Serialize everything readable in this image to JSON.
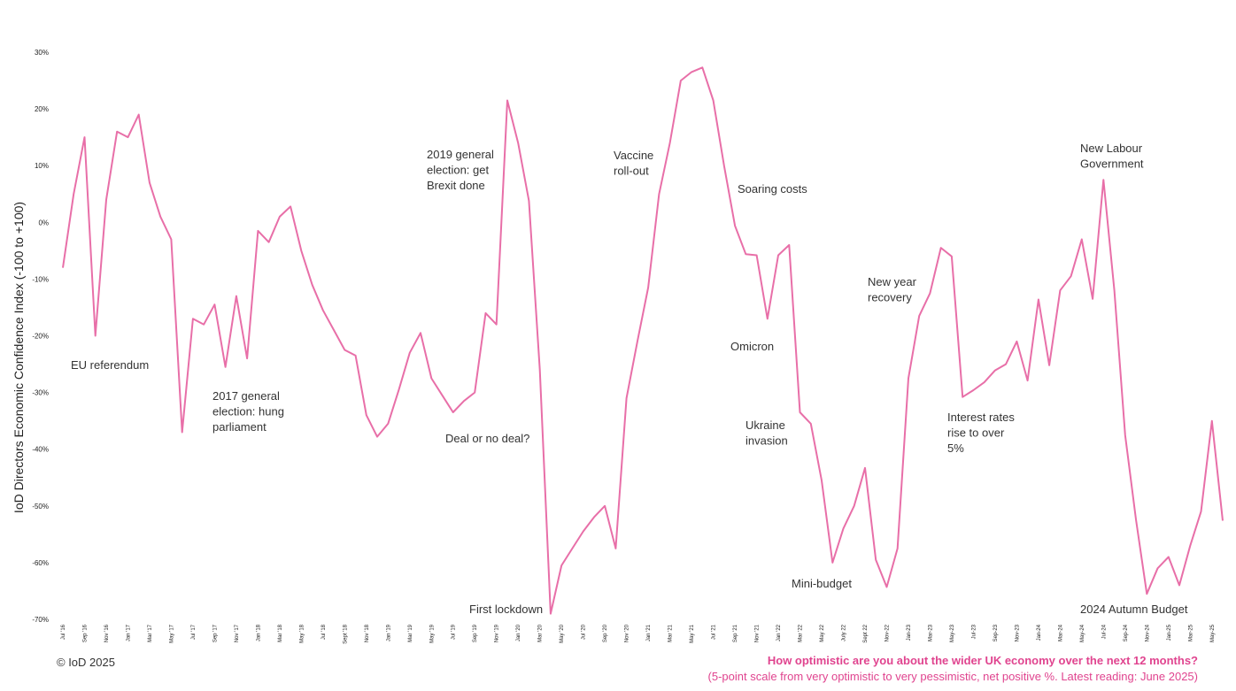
{
  "chart_data": {
    "type": "line",
    "ylabel": "IoD Directors Economic Confidence Index (-100 to +100)",
    "ylim": [
      -70,
      30
    ],
    "yticks": [
      "30%",
      "20%",
      "10%",
      "0%",
      "-10%",
      "-20%",
      "-30%",
      "-40%",
      "-50%",
      "-60%",
      "-70%"
    ],
    "ytick_values": [
      30,
      20,
      10,
      0,
      -10,
      -20,
      -30,
      -40,
      -50,
      -60,
      -70
    ],
    "xtick_labels": [
      "Jul '16",
      "Sep '16",
      "Nov '16",
      "Jan '17",
      "Mar '17",
      "May '17",
      "Jul '17",
      "Sep '17",
      "Nov '17",
      "Jan '18",
      "Mar '18",
      "May '18",
      "Jul '18",
      "Sept '18",
      "Nov '18",
      "Jan '19",
      "Mar '19",
      "May '19",
      "Jul '19",
      "Sep '19",
      "Nov '19",
      "Jan '20",
      "Mar '20",
      "May '20",
      "Jul '20",
      "Sep '20",
      "Nov '20",
      "Jan '21",
      "Mar '21",
      "May '21",
      "Jul '21",
      "Sep '21",
      "Nov '21",
      "Jan '22",
      "Mar '22",
      "May 22",
      "July 22",
      "Sept 22",
      "Nov-22",
      "Jan-23",
      "Mar-23",
      "May-23",
      "Jul-23",
      "Sep-23",
      "Nov-23",
      "Jan-24",
      "Mar-24",
      "May-24",
      "Jul-24",
      "Sep-24",
      "Nov-24",
      "Jan-25",
      "Mar-25",
      "May-25"
    ],
    "grid": false,
    "series": [
      {
        "color": "#e86fa8",
        "values": [
          -8,
          5,
          15,
          -20,
          4,
          16,
          15,
          19,
          7,
          1,
          -3,
          -37,
          -17,
          -18,
          -14.5,
          -25.5,
          -13,
          -24,
          -1.5,
          -3.5,
          1,
          2.8,
          -5,
          -11,
          -15.5,
          -19,
          -22.5,
          -23.5,
          -34,
          -37.8,
          -35.5,
          -29.5,
          -23,
          -19.5,
          -27.5,
          -30.5,
          -33.5,
          -31.5,
          -30,
          -16,
          -18,
          21.5,
          14,
          3.8,
          -26,
          -69,
          -60.5,
          -57.5,
          -54.5,
          -52,
          -50,
          -57.5,
          -31,
          -21,
          -11.5,
          5,
          14,
          25,
          26.5,
          27.3,
          21.5,
          10,
          -0.6,
          -5.6,
          -5.8,
          -17,
          -5.8,
          -4,
          -33.5,
          -35.5,
          -45.5,
          -60,
          -54,
          -50,
          -43.3,
          -59.5,
          -64.3,
          -57.5,
          -27.5,
          -16.5,
          -12.5,
          -4.5,
          -6,
          -30.8,
          -29.6,
          -28.2,
          -26.1,
          -25,
          -21,
          -27.9,
          -13.6,
          -25.2,
          -12,
          -9.5,
          -3,
          -13.5,
          7.5,
          -12,
          -37.5,
          -52.5,
          -65.5,
          -61,
          -59,
          -64,
          -57,
          -51,
          -35,
          -52.6
        ]
      }
    ],
    "annotations": [
      {
        "lines": [
          "EU referendum"
        ]
      },
      {
        "lines": [
          "2017 general",
          "election: hung",
          "parliament"
        ]
      },
      {
        "lines": [
          "2019 general",
          "election: get",
          "Brexit done"
        ]
      },
      {
        "lines": [
          "Deal or no deal?"
        ]
      },
      {
        "lines": [
          "First lockdown"
        ]
      },
      {
        "lines": [
          "Vaccine",
          "roll-out"
        ]
      },
      {
        "lines": [
          "Soaring costs"
        ]
      },
      {
        "lines": [
          "Omicron"
        ]
      },
      {
        "lines": [
          "Ukraine",
          "invasion"
        ]
      },
      {
        "lines": [
          "Mini-budget"
        ]
      },
      {
        "lines": [
          "New year",
          "recovery"
        ]
      },
      {
        "lines": [
          "Interest rates",
          "rise to over",
          "5%"
        ]
      },
      {
        "lines": [
          "New Labour",
          "Government"
        ]
      },
      {
        "lines": [
          "2024 Autumn Budget"
        ]
      }
    ]
  },
  "footer": {
    "copyright": "© IoD 2025",
    "question": "How optimistic are you about the wider UK economy over the next 12 months?",
    "subtitle": "(5-point scale from very optimistic to very pessimistic, net positive %. Latest reading: June 2025)"
  }
}
